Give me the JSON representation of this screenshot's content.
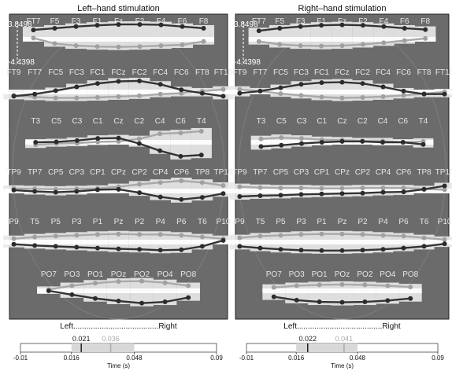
{
  "chart_data": [
    {
      "type": "line",
      "title": "Left–hand stimulation",
      "xlabel": "Left.......................................Right",
      "scale_labels": [
        "3.8498",
        "-4.4398"
      ],
      "ylim": [
        -4.4398,
        3.8498
      ],
      "time_axis": {
        "label": "Time (s)",
        "ticks": [
          "-0.01",
          "0.016",
          "0.048",
          "0.09"
        ],
        "range": [
          -0.01,
          0.09
        ],
        "window": [
          0.016,
          0.048
        ],
        "markers": [
          {
            "label": "0.021",
            "value": 0.021,
            "color": "#222222"
          },
          {
            "label": "0.036",
            "value": 0.036,
            "color": "#aaaaaa"
          }
        ]
      },
      "rows": [
        {
          "labels": [
            "FT7",
            "F5",
            "F3",
            "F1",
            "Fz",
            "F2",
            "F4",
            "F6",
            "F8"
          ],
          "dark": [
            2.2,
            2.6,
            3.0,
            3.3,
            3.5,
            3.5,
            3.4,
            3.0,
            2.6
          ],
          "light": [
            0.3,
            -1.0,
            -1.5,
            -1.7,
            -1.8,
            -1.7,
            -1.5,
            -1.3,
            -0.5
          ]
        },
        {
          "labels": [
            "FT9",
            "FT7",
            "FC5",
            "FC3",
            "FC1",
            "FCz",
            "FC2",
            "FC4",
            "FC6",
            "FT8",
            "FT10"
          ],
          "dark": [
            -1.0,
            -0.5,
            0.3,
            1.2,
            2.0,
            2.5,
            2.6,
            1.8,
            0.5,
            -0.3,
            -1.0
          ],
          "light": [
            -0.8,
            -1.2,
            -1.4,
            -1.4,
            -1.3,
            -1.1,
            -0.9,
            -0.5,
            -0.3,
            0.2,
            0.6
          ]
        },
        {
          "labels": [
            "T3",
            "C5",
            "C3",
            "C1",
            "Cz",
            "C2",
            "C4",
            "C6",
            "T4"
          ],
          "dark": [
            0.0,
            0.1,
            0.4,
            0.9,
            1.0,
            -0.3,
            -2.0,
            -3.3,
            -3.0
          ],
          "light": [
            -0.6,
            -0.3,
            -0.2,
            0.1,
            0.2,
            0.8,
            2.0,
            2.2,
            2.6
          ]
        },
        {
          "labels": [
            "TP9",
            "TP7",
            "CP5",
            "CP3",
            "CP1",
            "CPz",
            "CP2",
            "CP4",
            "CP6",
            "TP8",
            "TP10"
          ],
          "dark": [
            0.2,
            -0.1,
            -0.3,
            -0.1,
            0.3,
            0.4,
            -0.4,
            -1.4,
            -2.0,
            -1.5,
            -0.6
          ],
          "light": [
            0.6,
            0.5,
            0.4,
            0.5,
            0.6,
            1.0,
            1.6,
            2.0,
            2.4,
            2.0,
            1.3
          ]
        },
        {
          "labels": [
            "P9",
            "T5",
            "P5",
            "P3",
            "P1",
            "Pz",
            "P2",
            "P4",
            "P6",
            "T6",
            "P10"
          ],
          "dark": [
            -0.5,
            -0.8,
            -1.0,
            -1.2,
            -1.4,
            -1.6,
            -1.7,
            -1.9,
            -1.8,
            -1.0,
            0.4
          ],
          "light": [
            0.8,
            1.2,
            1.4,
            1.6,
            1.8,
            1.9,
            1.8,
            1.8,
            1.6,
            1.2,
            0.8
          ]
        },
        {
          "labels": [
            "PO7",
            "PO3",
            "PO1",
            "POz",
            "PO2",
            "PO4",
            "PO8"
          ],
          "dark": [
            0.0,
            -0.9,
            -1.8,
            -2.4,
            -2.9,
            -2.6,
            -1.6
          ],
          "light": [
            0.3,
            1.2,
            1.8,
            2.2,
            2.3,
            1.9,
            1.2
          ]
        }
      ]
    },
    {
      "type": "line",
      "title": "Right–hand stimulation",
      "xlabel": "Left.......................................Right",
      "scale_labels": [
        "3.8498",
        "-4.4398"
      ],
      "ylim": [
        -4.4398,
        3.8498
      ],
      "time_axis": {
        "label": "Time (s)",
        "ticks": [
          "-0.01",
          "0.016",
          "0.048",
          "0.09"
        ],
        "range": [
          -0.01,
          0.09
        ],
        "window": [
          0.016,
          0.048
        ],
        "markers": [
          {
            "label": "0.022",
            "value": 0.022,
            "color": "#222222"
          },
          {
            "label": "0.041",
            "value": 0.041,
            "color": "#aaaaaa"
          }
        ]
      },
      "rows": [
        {
          "labels": [
            "FT7",
            "F5",
            "F3",
            "F1",
            "Fz",
            "F2",
            "F4",
            "F6",
            "F8"
          ],
          "dark": [
            2.0,
            2.6,
            3.0,
            3.3,
            3.4,
            3.3,
            3.0,
            2.6,
            2.3
          ],
          "light": [
            -0.5,
            -1.2,
            -1.5,
            -1.6,
            -1.5,
            -1.2,
            -0.8,
            -0.3,
            0.2
          ]
        },
        {
          "labels": [
            "FT9",
            "FT7",
            "FC5",
            "FC3",
            "FC1",
            "FCz",
            "FC2",
            "FC4",
            "FC6",
            "FT8",
            "FT10"
          ],
          "dark": [
            -0.3,
            0.2,
            1.0,
            1.8,
            2.2,
            2.3,
            2.0,
            1.2,
            0.2,
            -0.5,
            -0.5
          ],
          "light": [
            0.6,
            0.2,
            -0.4,
            -0.8,
            -1.2,
            -1.4,
            -1.3,
            -1.1,
            -0.8,
            -0.4,
            0.0
          ]
        },
        {
          "labels": [
            "T3",
            "C5",
            "C3",
            "C1",
            "Cz",
            "C2",
            "C4",
            "C6",
            "T4"
          ],
          "dark": [
            -1.0,
            -0.7,
            -0.3,
            0.0,
            0.2,
            0.2,
            0.0,
            0.0,
            -0.5
          ],
          "light": [
            0.8,
            1.1,
            0.9,
            0.6,
            0.5,
            0.3,
            0.3,
            0.0,
            0.2
          ]
        },
        {
          "labels": [
            "TP9",
            "TP7",
            "CP5",
            "CP3",
            "CP1",
            "CPz",
            "CP2",
            "CP4",
            "CP6",
            "TP8",
            "TP10"
          ],
          "dark": [
            -1.3,
            -1.1,
            -1.0,
            -0.8,
            -0.7,
            -0.6,
            -0.5,
            -0.3,
            -0.2,
            0.4,
            1.2
          ],
          "light": [
            1.0,
            0.8,
            0.7,
            0.7,
            0.6,
            0.6,
            0.7,
            0.7,
            0.7,
            0.5,
            0.3
          ]
        },
        {
          "labels": [
            "P9",
            "T5",
            "P5",
            "P3",
            "P1",
            "Pz",
            "P2",
            "P4",
            "P6",
            "T6",
            "P10"
          ],
          "dark": [
            -1.0,
            -1.4,
            -1.7,
            -1.9,
            -2.0,
            -2.0,
            -1.9,
            -1.7,
            -1.4,
            -1.0,
            -0.4
          ],
          "light": [
            1.0,
            1.4,
            1.6,
            1.8,
            1.9,
            1.9,
            1.8,
            1.6,
            1.4,
            1.0,
            0.6
          ]
        },
        {
          "labels": [
            "PO7",
            "PO3",
            "PO1",
            "POz",
            "PO2",
            "PO4",
            "PO8"
          ],
          "dark": [
            -1.4,
            -2.2,
            -2.6,
            -2.7,
            -2.6,
            -2.3,
            -1.8
          ],
          "light": [
            0.8,
            1.2,
            1.4,
            1.5,
            1.4,
            1.2,
            0.9
          ]
        }
      ]
    }
  ]
}
